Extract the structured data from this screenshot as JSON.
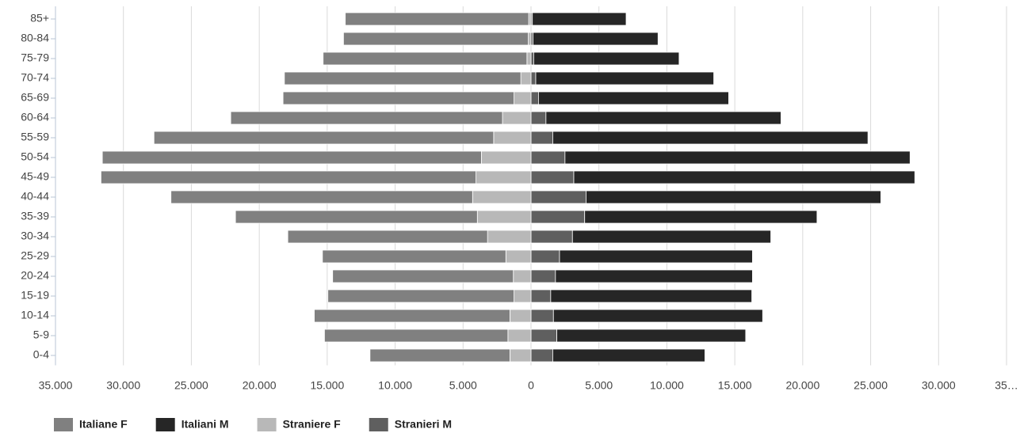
{
  "chart_data": {
    "type": "bar",
    "orientation": "horizontal",
    "stacked": true,
    "categories": [
      "0-4",
      "5-9",
      "10-14",
      "15-19",
      "20-24",
      "25-29",
      "30-34",
      "35-39",
      "40-44",
      "45-49",
      "50-54",
      "55-59",
      "60-64",
      "65-69",
      "70-74",
      "75-79",
      "80-84",
      "85+"
    ],
    "series": [
      {
        "name": "Italiane F",
        "color": "#808080",
        "values": [
          -10300,
          -13500,
          -14400,
          -13700,
          -13300,
          -13500,
          -14700,
          -17800,
          -22200,
          -27600,
          -27900,
          -25000,
          -20000,
          -17000,
          -17400,
          -15000,
          -13600,
          -13500
        ]
      },
      {
        "name": "Italiani M",
        "color": "#262626",
        "values": [
          11200,
          13900,
          15400,
          14800,
          14500,
          14200,
          14600,
          17100,
          21700,
          25100,
          25400,
          23200,
          17300,
          14000,
          13100,
          10700,
          9200,
          6900
        ]
      },
      {
        "name": "Straniere F",
        "color": "#b8b8b8",
        "values": [
          -1550,
          -1700,
          -1550,
          -1250,
          -1300,
          -1850,
          -3200,
          -3950,
          -4300,
          -4050,
          -3650,
          -2750,
          -2100,
          -1250,
          -750,
          -300,
          -200,
          -170
        ]
      },
      {
        "name": "Stranieri M",
        "color": "#5f5f5f",
        "values": [
          1600,
          1900,
          1650,
          1450,
          1800,
          2100,
          3050,
          3950,
          4050,
          3150,
          2500,
          1600,
          1100,
          550,
          350,
          200,
          150,
          100
        ]
      }
    ],
    "xlim": [
      -35000,
      35000
    ],
    "xticks": [
      {
        "value": -35000,
        "label": "35.000"
      },
      {
        "value": -30000,
        "label": "30.000"
      },
      {
        "value": -25000,
        "label": "25.000"
      },
      {
        "value": -20000,
        "label": "20.000"
      },
      {
        "value": -15000,
        "label": "15.000"
      },
      {
        "value": -10000,
        "label": "10.000"
      },
      {
        "value": -5000,
        "label": "5.000"
      },
      0,
      {
        "value": 5000,
        "label": "5.000"
      },
      {
        "value": 10000,
        "label": "10.000"
      },
      {
        "value": 15000,
        "label": "15.000"
      },
      {
        "value": 20000,
        "label": "20.000"
      },
      {
        "value": 25000,
        "label": "25.000"
      },
      {
        "value": 30000,
        "label": "30.000"
      },
      {
        "value": 35000,
        "label": "35…"
      }
    ],
    "grid": true,
    "legend": "bottom"
  }
}
